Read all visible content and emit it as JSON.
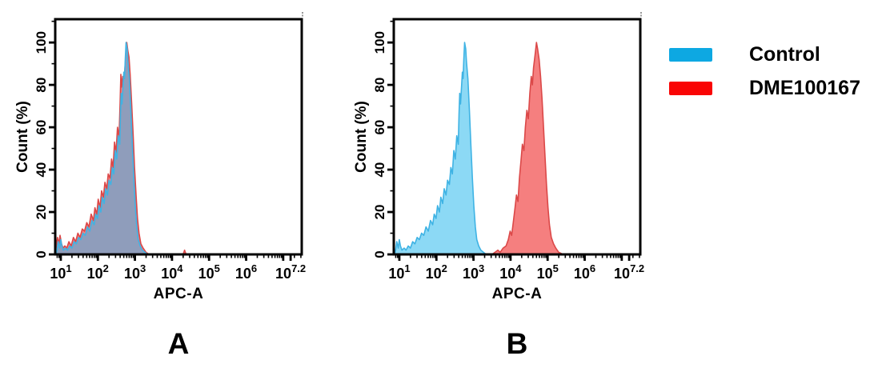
{
  "figure": {
    "legend": {
      "items": [
        {
          "label": "Control",
          "color": "#0DA8E2"
        },
        {
          "label": "DME100167",
          "color": "#F90505"
        }
      ]
    }
  },
  "colors": {
    "axis": "#000000",
    "control_fill": "#8CD9F5",
    "control_edge": "#3FB3E4",
    "treated_fill": "#F57F7F",
    "treated_edge": "#DB4848",
    "overlap_fill": "#8F9DBB",
    "corner_stub": "#999999"
  },
  "chart_data": [
    {
      "type": "area",
      "panel_label": "A",
      "xlabel": "APC-A",
      "ylabel": "Count (%)",
      "x_scale": "log10",
      "xlim_log10": [
        0.85,
        7.5
      ],
      "ylim": [
        0,
        111
      ],
      "y_major_ticks": [
        0,
        20,
        40,
        60,
        80,
        100
      ],
      "y_minor_ticks": [
        10,
        30,
        50,
        70,
        90,
        110
      ],
      "x_major_ticks_log10": [
        1,
        2,
        3,
        4,
        5,
        6,
        7,
        7.2
      ],
      "x_tick_labels": [
        "10^1",
        "10^2",
        "10^3",
        "10^4",
        "10^5",
        "10^6",
        "",
        "10^7.2"
      ],
      "grid": false,
      "series": [
        {
          "name": "DME100167",
          "fill": "#F57F7F",
          "stroke": "#DB4848",
          "points_log10x_pct": [
            [
              0.85,
              0
            ],
            [
              0.88,
              4
            ],
            [
              0.91,
              8
            ],
            [
              0.95,
              5
            ],
            [
              0.98,
              9
            ],
            [
              1.02,
              5
            ],
            [
              1.06,
              3
            ],
            [
              1.11,
              4
            ],
            [
              1.16,
              3
            ],
            [
              1.22,
              6
            ],
            [
              1.28,
              4
            ],
            [
              1.34,
              8
            ],
            [
              1.4,
              6
            ],
            [
              1.46,
              10
            ],
            [
              1.52,
              8
            ],
            [
              1.58,
              12
            ],
            [
              1.64,
              11
            ],
            [
              1.7,
              15
            ],
            [
              1.76,
              13
            ],
            [
              1.82,
              19
            ],
            [
              1.88,
              16
            ],
            [
              1.92,
              22
            ],
            [
              1.97,
              19
            ],
            [
              2.01,
              26
            ],
            [
              2.06,
              22
            ],
            [
              2.1,
              30
            ],
            [
              2.15,
              27
            ],
            [
              2.19,
              34
            ],
            [
              2.24,
              31
            ],
            [
              2.28,
              38
            ],
            [
              2.33,
              36
            ],
            [
              2.37,
              45
            ],
            [
              2.41,
              41
            ],
            [
              2.45,
              53
            ],
            [
              2.49,
              48
            ],
            [
              2.53,
              60
            ],
            [
              2.57,
              55
            ],
            [
              2.6,
              72
            ],
            [
              2.62,
              85
            ],
            [
              2.64,
              79
            ],
            [
              2.67,
              84
            ],
            [
              2.7,
              81
            ],
            [
              2.73,
              88
            ],
            [
              2.76,
              95
            ],
            [
              2.78,
              100
            ],
            [
              2.81,
              96
            ],
            [
              2.84,
              93
            ],
            [
              2.87,
              85
            ],
            [
              2.91,
              72
            ],
            [
              2.95,
              57
            ],
            [
              2.99,
              41
            ],
            [
              3.03,
              28
            ],
            [
              3.07,
              17
            ],
            [
              3.11,
              10
            ],
            [
              3.16,
              5
            ],
            [
              3.22,
              3
            ],
            [
              3.3,
              1
            ],
            [
              3.38,
              0
            ],
            [
              4.3,
              0
            ],
            [
              4.34,
              2
            ],
            [
              4.38,
              0
            ]
          ]
        },
        {
          "name": "Control",
          "fill": "#8F9DBB",
          "stroke": "#3FB3E4",
          "points_log10x_pct": [
            [
              0.87,
              0
            ],
            [
              0.9,
              2
            ],
            [
              0.93,
              6
            ],
            [
              0.97,
              3
            ],
            [
              1.0,
              7
            ],
            [
              1.03,
              4
            ],
            [
              1.07,
              2
            ],
            [
              1.13,
              3
            ],
            [
              1.18,
              2
            ],
            [
              1.24,
              4
            ],
            [
              1.3,
              3
            ],
            [
              1.36,
              6
            ],
            [
              1.42,
              5
            ],
            [
              1.48,
              8
            ],
            [
              1.54,
              7
            ],
            [
              1.6,
              10
            ],
            [
              1.66,
              9
            ],
            [
              1.72,
              13
            ],
            [
              1.78,
              11
            ],
            [
              1.84,
              16
            ],
            [
              1.9,
              14
            ],
            [
              1.94,
              19
            ],
            [
              1.99,
              17
            ],
            [
              2.03,
              23
            ],
            [
              2.08,
              20
            ],
            [
              2.12,
              27
            ],
            [
              2.17,
              24
            ],
            [
              2.21,
              31
            ],
            [
              2.26,
              28
            ],
            [
              2.3,
              35
            ],
            [
              2.35,
              33
            ],
            [
              2.39,
              41
            ],
            [
              2.43,
              38
            ],
            [
              2.47,
              49
            ],
            [
              2.51,
              45
            ],
            [
              2.55,
              56
            ],
            [
              2.59,
              52
            ],
            [
              2.61,
              66
            ],
            [
              2.63,
              76
            ],
            [
              2.65,
              71
            ],
            [
              2.68,
              80
            ],
            [
              2.7,
              86
            ],
            [
              2.72,
              83
            ],
            [
              2.74,
              92
            ],
            [
              2.76,
              100
            ],
            [
              2.79,
              97
            ],
            [
              2.81,
              91
            ],
            [
              2.85,
              83
            ],
            [
              2.89,
              68
            ],
            [
              2.93,
              52
            ],
            [
              2.97,
              36
            ],
            [
              3.01,
              23
            ],
            [
              3.05,
              13
            ],
            [
              3.09,
              7
            ],
            [
              3.14,
              4
            ],
            [
              3.2,
              2
            ],
            [
              3.27,
              1
            ],
            [
              3.34,
              0
            ]
          ]
        }
      ]
    },
    {
      "type": "area",
      "panel_label": "B",
      "xlabel": "APC-A",
      "ylabel": "Count (%)",
      "x_scale": "log10",
      "xlim_log10": [
        0.85,
        7.5
      ],
      "ylim": [
        0,
        111
      ],
      "y_major_ticks": [
        0,
        20,
        40,
        60,
        80,
        100
      ],
      "y_minor_ticks": [
        10,
        30,
        50,
        70,
        90,
        110
      ],
      "x_major_ticks_log10": [
        1,
        2,
        3,
        4,
        5,
        6,
        7,
        7.2
      ],
      "x_tick_labels": [
        "10^1",
        "10^2",
        "10^3",
        "10^4",
        "10^5",
        "10^6",
        "",
        "10^7.2"
      ],
      "grid": false,
      "series": [
        {
          "name": "Control",
          "fill": "#8CD9F5",
          "stroke": "#3FB3E4",
          "points_log10x_pct": [
            [
              0.87,
              0
            ],
            [
              0.9,
              2
            ],
            [
              0.93,
              6
            ],
            [
              0.97,
              3
            ],
            [
              1.0,
              7
            ],
            [
              1.03,
              4
            ],
            [
              1.07,
              2
            ],
            [
              1.13,
              3
            ],
            [
              1.18,
              2
            ],
            [
              1.24,
              4
            ],
            [
              1.3,
              3
            ],
            [
              1.36,
              6
            ],
            [
              1.42,
              5
            ],
            [
              1.48,
              8
            ],
            [
              1.54,
              7
            ],
            [
              1.6,
              10
            ],
            [
              1.66,
              9
            ],
            [
              1.72,
              13
            ],
            [
              1.78,
              11
            ],
            [
              1.84,
              16
            ],
            [
              1.9,
              14
            ],
            [
              1.94,
              19
            ],
            [
              1.99,
              17
            ],
            [
              2.03,
              23
            ],
            [
              2.08,
              20
            ],
            [
              2.12,
              27
            ],
            [
              2.17,
              24
            ],
            [
              2.21,
              31
            ],
            [
              2.26,
              28
            ],
            [
              2.3,
              35
            ],
            [
              2.35,
              33
            ],
            [
              2.39,
              41
            ],
            [
              2.43,
              38
            ],
            [
              2.47,
              49
            ],
            [
              2.51,
              45
            ],
            [
              2.55,
              56
            ],
            [
              2.59,
              52
            ],
            [
              2.61,
              66
            ],
            [
              2.63,
              76
            ],
            [
              2.65,
              71
            ],
            [
              2.68,
              80
            ],
            [
              2.7,
              86
            ],
            [
              2.72,
              83
            ],
            [
              2.74,
              92
            ],
            [
              2.76,
              100
            ],
            [
              2.79,
              97
            ],
            [
              2.81,
              91
            ],
            [
              2.85,
              83
            ],
            [
              2.89,
              68
            ],
            [
              2.93,
              52
            ],
            [
              2.97,
              36
            ],
            [
              3.01,
              23
            ],
            [
              3.05,
              13
            ],
            [
              3.09,
              7
            ],
            [
              3.14,
              4
            ],
            [
              3.2,
              2
            ],
            [
              3.27,
              1
            ],
            [
              3.34,
              0
            ]
          ]
        },
        {
          "name": "DME100167",
          "fill": "#F57F7F",
          "stroke": "#DB4848",
          "points_log10x_pct": [
            [
              3.5,
              0
            ],
            [
              3.58,
              1
            ],
            [
              3.66,
              2
            ],
            [
              3.72,
              1
            ],
            [
              3.8,
              3
            ],
            [
              3.88,
              4
            ],
            [
              3.94,
              7
            ],
            [
              3.99,
              11
            ],
            [
              4.03,
              9
            ],
            [
              4.08,
              16
            ],
            [
              4.12,
              22
            ],
            [
              4.16,
              28
            ],
            [
              4.2,
              25
            ],
            [
              4.24,
              36
            ],
            [
              4.28,
              44
            ],
            [
              4.32,
              52
            ],
            [
              4.36,
              49
            ],
            [
              4.4,
              60
            ],
            [
              4.44,
              68
            ],
            [
              4.48,
              64
            ],
            [
              4.52,
              76
            ],
            [
              4.56,
              84
            ],
            [
              4.59,
              80
            ],
            [
              4.62,
              88
            ],
            [
              4.66,
              94
            ],
            [
              4.7,
              100
            ],
            [
              4.73,
              97
            ],
            [
              4.77,
              92
            ],
            [
              4.81,
              84
            ],
            [
              4.85,
              73
            ],
            [
              4.89,
              60
            ],
            [
              4.93,
              46
            ],
            [
              4.97,
              33
            ],
            [
              5.01,
              22
            ],
            [
              5.05,
              14
            ],
            [
              5.1,
              8
            ],
            [
              5.16,
              5
            ],
            [
              5.22,
              3
            ],
            [
              5.3,
              1
            ],
            [
              5.42,
              0
            ]
          ]
        }
      ]
    }
  ]
}
